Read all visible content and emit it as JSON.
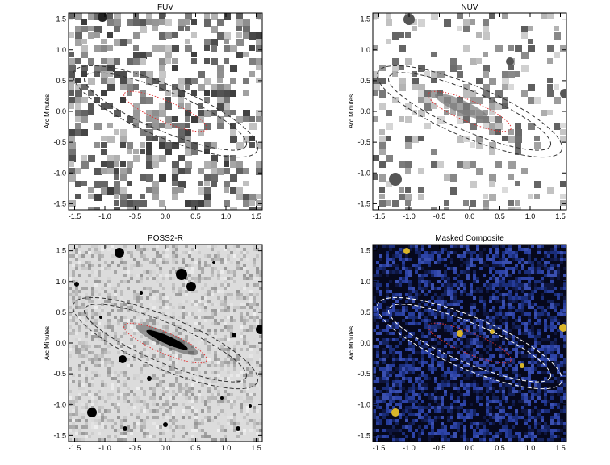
{
  "figure": {
    "panels": [
      {
        "id": "fuv",
        "title": "FUV",
        "ylabel": "Arc Minutes",
        "style": "noise",
        "ellipse_color": "#333333"
      },
      {
        "id": "nuv",
        "title": "NUV",
        "ylabel": "Arc Minutes",
        "style": "light",
        "ellipse_color": "#333333"
      },
      {
        "id": "poss",
        "title": "POSS2-R",
        "ylabel": "Arc Minutes",
        "style": "optical",
        "ellipse_color": "#333333"
      },
      {
        "id": "comp",
        "title": "Masked Composite",
        "ylabel": "Arc Minutes",
        "style": "composite",
        "ellipse_color": "#ffffff"
      }
    ],
    "xticks": [
      "-1.5",
      "-1.0",
      "-0.5",
      "0.0",
      "0.5",
      "1.0",
      "1.5"
    ],
    "yticks": [
      "1.5",
      "1.0",
      "0.5",
      "0.0",
      "-0.5",
      "-1.0",
      "-1.5"
    ],
    "inner_ellipse_color": "#e03030",
    "axis_range": [
      -1.6,
      1.6
    ]
  }
}
